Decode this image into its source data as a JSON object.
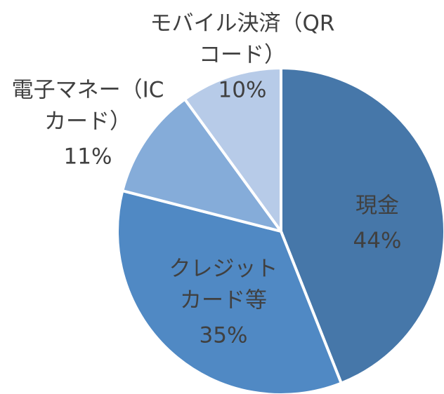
{
  "chart_data": {
    "type": "pie",
    "categories": [
      [
        "現金"
      ],
      [
        "クレジット",
        "カード等"
      ],
      [
        "電子マネー（IC",
        "カード）"
      ],
      [
        "モバイル決済（QR",
        "コード）"
      ]
    ],
    "values": [
      44,
      35,
      11,
      10
    ],
    "value_labels": [
      "44%",
      "35%",
      "11%",
      "10%"
    ],
    "colors": [
      "#4677a9",
      "#5089c4",
      "#85acd9",
      "#b7cbe8"
    ]
  }
}
